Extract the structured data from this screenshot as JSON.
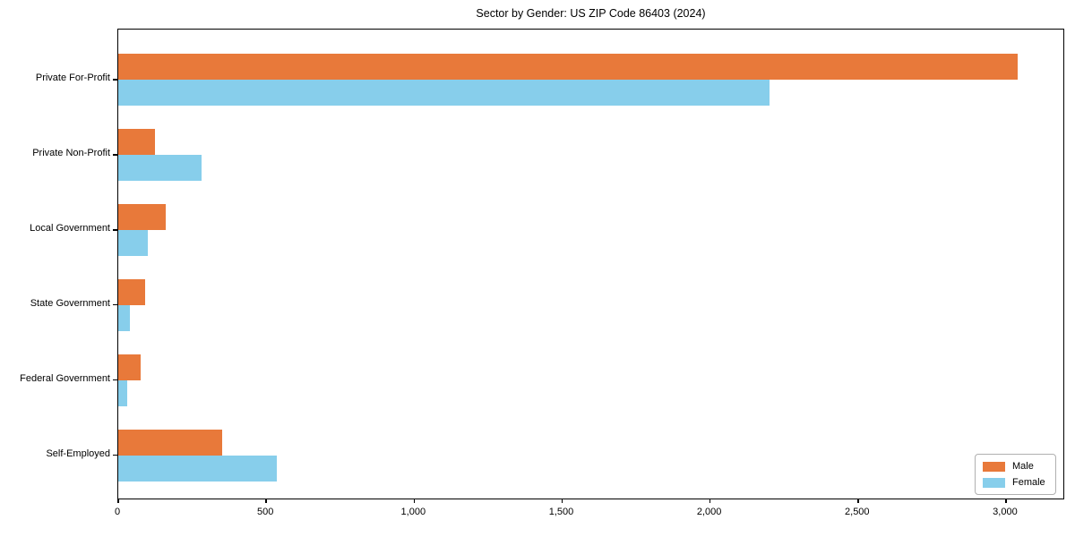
{
  "title": "Sector by Gender: US ZIP Code 86403 (2024)",
  "chart_data": {
    "type": "bar",
    "orientation": "horizontal",
    "title": "Sector by Gender: US ZIP Code 86403 (2024)",
    "categories": [
      "Private For-Profit",
      "Private Non-Profit",
      "Local Government",
      "State Government",
      "Federal Government",
      "Self-Employed"
    ],
    "series": [
      {
        "name": "Male",
        "color": "#e8793a",
        "values": [
          3040,
          125,
          160,
          90,
          75,
          350
        ]
      },
      {
        "name": "Female",
        "color": "#87ceeb",
        "values": [
          2200,
          280,
          100,
          38,
          30,
          535
        ]
      }
    ],
    "xlabel": "",
    "ylabel": "",
    "xlim": [
      0,
      3200
    ],
    "xticks": [
      0,
      500,
      1000,
      1500,
      2000,
      2500,
      3000
    ],
    "xtick_labels": [
      "0",
      "500",
      "1,000",
      "1,500",
      "2,000",
      "2,500",
      "3,000"
    ],
    "grid": false,
    "legend": {
      "position": "lower right"
    }
  },
  "colors": {
    "male": "#e8793a",
    "female": "#87ceeb",
    "axis": "#000000",
    "legend_border": "#b0b0b0",
    "background": "#ffffff"
  }
}
